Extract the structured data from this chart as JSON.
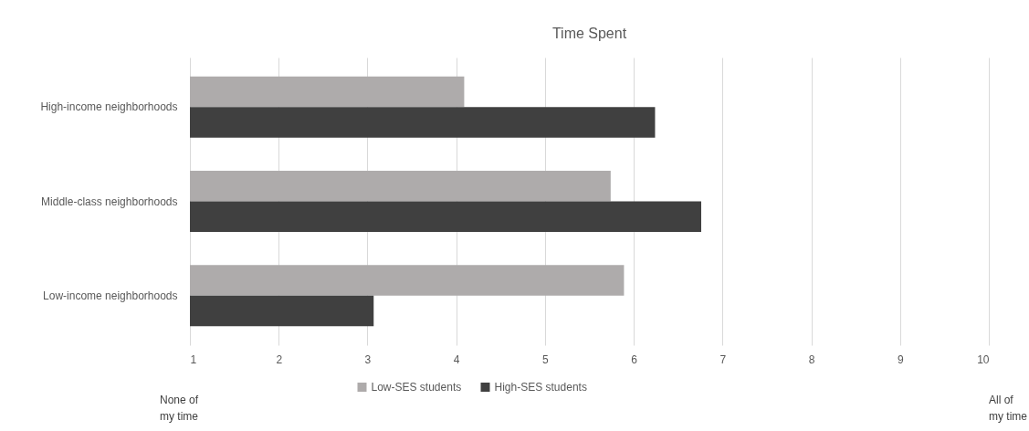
{
  "chart_data": {
    "type": "bar",
    "orientation": "horizontal",
    "title": "Time Spent",
    "categories": [
      "High-income neighborhoods",
      "Middle-class neighborhoods",
      "Low-income neighborhoods"
    ],
    "series": [
      {
        "name": "Low-SES students",
        "color": "#aeabab",
        "values": [
          4.09,
          5.74,
          5.89
        ]
      },
      {
        "name": "High-SES students",
        "color": "#404040",
        "values": [
          6.24,
          6.76,
          3.07
        ]
      }
    ],
    "xlim": [
      1,
      10
    ],
    "xticks": [
      1,
      2,
      3,
      4,
      5,
      6,
      7,
      8,
      9,
      10
    ],
    "grid": "x",
    "legend": "bottom",
    "annotations": [
      "None of my time",
      "All of my time"
    ]
  }
}
